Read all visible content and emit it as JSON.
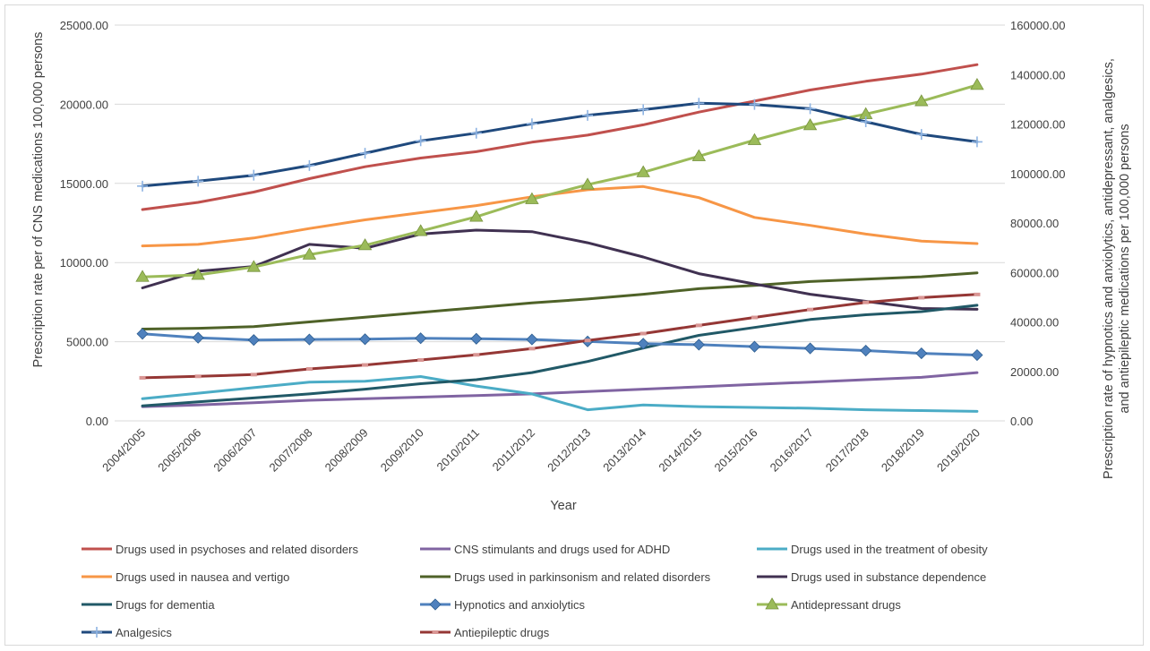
{
  "chart_data": {
    "type": "line",
    "title": "",
    "xlabel": "Year",
    "ylabel_left": "Prescription rate per of CNS medications 100,000 persons",
    "ylabel_right_line1": "Prescription rate  of hypnotics and anxiolytics, antidepressant, analgesics,",
    "ylabel_right_line2": "and antiepileptic medications per 100,000 persons",
    "ylim_left": [
      0,
      25000
    ],
    "ylim_right": [
      0,
      160000
    ],
    "yticks_left": [
      "0.00",
      "5000.00",
      "10000.00",
      "15000.00",
      "20000.00",
      "25000.00"
    ],
    "yticks_right": [
      "0.00",
      "20000.00",
      "40000.00",
      "60000.00",
      "80000.00",
      "100000.00",
      "120000.00",
      "140000.00",
      "160000.00"
    ],
    "grid": true,
    "legend_position": "bottom",
    "categories": [
      "2004/2005",
      "2005/2006",
      "2006/2007",
      "2007/2008",
      "2008/2009",
      "2009/2010",
      "2010/2011",
      "2011/2012",
      "2012/2013",
      "2013/2014",
      "2014/2015",
      "2015/2016",
      "2016/2017",
      "2017/2018",
      "2018/2019",
      "2019/2020"
    ],
    "series": [
      {
        "name": "Drugs used in psychoses and related disorders",
        "axis": "left",
        "color": "#c0504d",
        "marker": "none",
        "values": [
          13350,
          13800,
          14450,
          15300,
          16050,
          16600,
          17000,
          17600,
          18050,
          18700,
          19500,
          20200,
          20900,
          21450,
          21900,
          22500
        ]
      },
      {
        "name": "CNS stimulants and drugs used for ADHD",
        "axis": "left",
        "color": "#8064a2",
        "marker": "none",
        "values": [
          900,
          1000,
          1150,
          1300,
          1400,
          1500,
          1600,
          1700,
          1850,
          2000,
          2150,
          2300,
          2450,
          2600,
          2750,
          3050
        ]
      },
      {
        "name": "Drugs used in the treatment of obesity",
        "axis": "left",
        "color": "#4bacc6",
        "marker": "none",
        "values": [
          1400,
          1750,
          2100,
          2450,
          2500,
          2800,
          2200,
          1700,
          700,
          1000,
          900,
          850,
          800,
          700,
          650,
          600
        ]
      },
      {
        "name": "Drugs used in nausea and vertigo",
        "axis": "left",
        "color": "#f79646",
        "marker": "none",
        "values": [
          11050,
          11150,
          11550,
          12150,
          12700,
          13150,
          13600,
          14150,
          14600,
          14800,
          14100,
          12850,
          12350,
          11800,
          11350,
          11200
        ]
      },
      {
        "name": "Drugs used in parkinsonism and related disorders",
        "axis": "left",
        "color": "#4f6228",
        "marker": "none",
        "values": [
          5800,
          5850,
          5950,
          6250,
          6550,
          6850,
          7150,
          7450,
          7700,
          8000,
          8350,
          8550,
          8800,
          8950,
          9100,
          9350
        ]
      },
      {
        "name": "Drugs used in substance dependence",
        "axis": "left",
        "color": "#403151",
        "marker": "none",
        "values": [
          8400,
          9450,
          9750,
          11150,
          10900,
          11800,
          12050,
          11950,
          11250,
          10350,
          9300,
          8650,
          8000,
          7550,
          7100,
          7050
        ]
      },
      {
        "name": "Drugs for dementia",
        "axis": "left",
        "color": "#215967",
        "marker": "none",
        "values": [
          950,
          1200,
          1450,
          1700,
          2000,
          2350,
          2600,
          3050,
          3750,
          4600,
          5400,
          5900,
          6400,
          6700,
          6900,
          7300
        ]
      },
      {
        "name": "Hypnotics and anxiolytics",
        "axis": "right",
        "color": "#4f81bd",
        "marker": "diamond",
        "values": [
          35200,
          33600,
          32700,
          32900,
          33000,
          33400,
          33200,
          32900,
          32100,
          31200,
          30800,
          30000,
          29300,
          28400,
          27300,
          26600
        ]
      },
      {
        "name": "Antidepressant drugs",
        "axis": "right",
        "color": "#9bbb59",
        "marker": "triangle",
        "values": [
          58200,
          59000,
          62200,
          67200,
          71000,
          76700,
          82500,
          89600,
          95500,
          100500,
          107000,
          113500,
          119500,
          124000,
          129200,
          135800
        ]
      },
      {
        "name": "Analgesics",
        "axis": "right",
        "color": "#1f497d",
        "marker": "plus",
        "values": [
          94900,
          96900,
          99300,
          103200,
          108200,
          113200,
          116300,
          120100,
          123500,
          125800,
          128400,
          127900,
          126200,
          120900,
          115800,
          112800
        ]
      },
      {
        "name": "Antiepileptic drugs",
        "axis": "right",
        "color": "#953735",
        "marker": "dash",
        "values": [
          17400,
          18000,
          18700,
          21000,
          22600,
          24600,
          26700,
          29200,
          32500,
          35300,
          38600,
          41800,
          45000,
          47900,
          49800,
          51100
        ]
      }
    ]
  }
}
